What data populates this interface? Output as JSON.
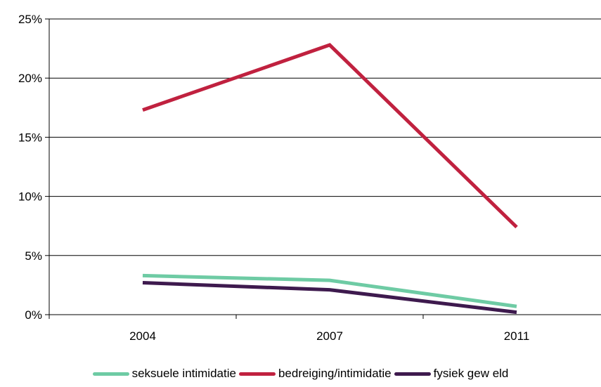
{
  "chart_data": {
    "type": "line",
    "categories": [
      "2004",
      "2007",
      "2011"
    ],
    "ylim": [
      0,
      25
    ],
    "yticks": [
      0,
      5,
      10,
      15,
      20,
      25
    ],
    "yticklabels": [
      "0%",
      "5%",
      "10%",
      "15%",
      "20%",
      "25%"
    ],
    "grid": "horizontal",
    "legend": "bottom",
    "series": [
      {
        "name": "seksuele intimidatie",
        "color": "#6ecba4",
        "values": [
          3.3,
          2.9,
          0.7
        ]
      },
      {
        "name": "bedreiging/intimidatie",
        "color": "#c0213f",
        "values": [
          17.3,
          22.8,
          7.4
        ]
      },
      {
        "name": "fysiek gew eld",
        "color": "#3e1a4e",
        "values": [
          2.7,
          2.1,
          0.2
        ]
      }
    ]
  }
}
